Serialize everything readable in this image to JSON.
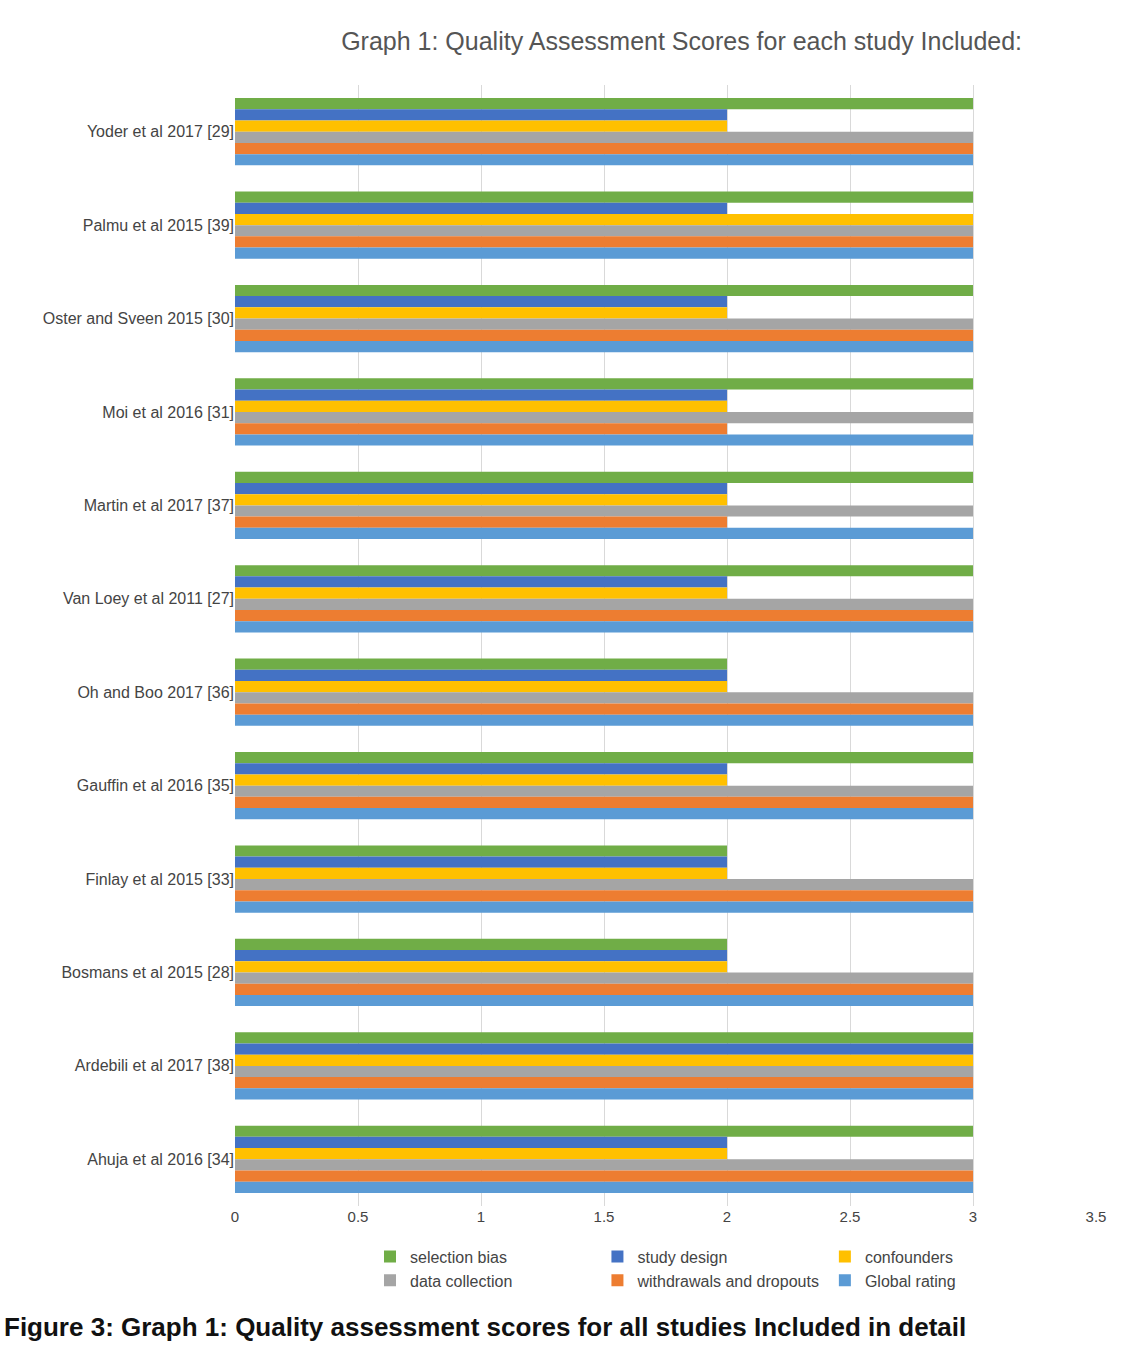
{
  "chart_data": {
    "type": "bar",
    "orientation": "horizontal",
    "title": "Graph 1: Quality Assessment Scores for each study Included:",
    "caption": "Figure 3: Graph 1: Quality assessment scores for all studies Included in detail",
    "categories": [
      "Yoder et al 2017 [29]",
      "Palmu et al 2015 [39]",
      "Oster and Sveen 2015 [30]",
      "Moi et al 2016 [31]",
      "Martin et al 2017 [37]",
      "Van Loey et al 2011 [27]",
      "Oh and Boo 2017 [36]",
      "Gauffin et al 2016 [35]",
      "Finlay et al 2015 [33]",
      "Bosmans et al 2015 [28]",
      "Ardebili et al 2017 [38]",
      "Ahuja et al 2016 [34]"
    ],
    "series": [
      {
        "name": "selection bias",
        "color": "#70ad47",
        "values": [
          3,
          3,
          3,
          3,
          3,
          3,
          2,
          3,
          2,
          2,
          3,
          3
        ]
      },
      {
        "name": "study design",
        "color": "#4472c4",
        "values": [
          2,
          2,
          2,
          2,
          2,
          2,
          2,
          2,
          2,
          2,
          3,
          2
        ]
      },
      {
        "name": "confounders",
        "color": "#ffc000",
        "values": [
          2,
          3,
          2,
          2,
          2,
          2,
          2,
          2,
          2,
          2,
          3,
          2
        ]
      },
      {
        "name": "data collection",
        "color": "#a5a5a5",
        "values": [
          3,
          3,
          3,
          3,
          3,
          3,
          3,
          3,
          3,
          3,
          3,
          3
        ]
      },
      {
        "name": "withdrawals and dropouts",
        "color": "#ed7d31",
        "values": [
          3,
          3,
          3,
          2,
          2,
          3,
          3,
          3,
          3,
          3,
          3,
          3
        ]
      },
      {
        "name": "Global rating",
        "color": "#5b9bd5",
        "values": [
          3,
          3,
          3,
          3,
          3,
          3,
          3,
          3,
          3,
          3,
          3,
          3
        ]
      }
    ],
    "xlim": [
      0,
      3.5
    ],
    "xticks": [
      0,
      0.5,
      1,
      1.5,
      2,
      2.5,
      3,
      3.5
    ],
    "grid": true,
    "legend": "bottom"
  }
}
